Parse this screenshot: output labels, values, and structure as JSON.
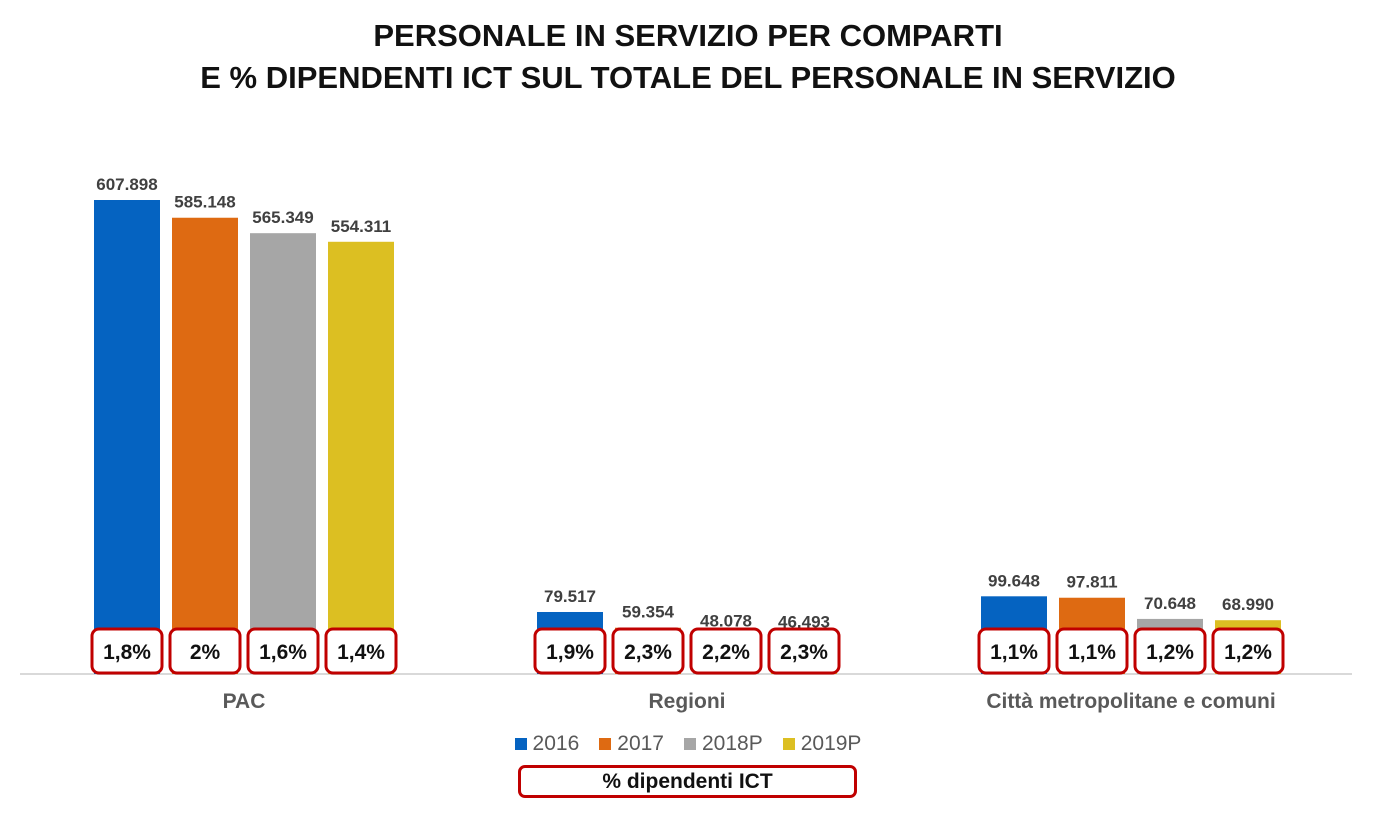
{
  "title_line1": "PERSONALE IN SERVIZIO PER COMPARTI",
  "title_line2": "E % DIPENDENTI ICT SUL TOTALE DEL PERSONALE IN SERVIZIO",
  "ict_legend_label": "% dipendenti ICT",
  "colors": {
    "2016": "#0563c1",
    "2017": "#de6a12",
    "2018P": "#a6a6a6",
    "2019P": "#dcbf22",
    "ict_border": "#c00000"
  },
  "chart_data": {
    "type": "bar",
    "categories": [
      "PAC",
      "Regioni",
      "Città metropolitane e comuni"
    ],
    "series": [
      {
        "name": "2016",
        "values": [
          607898,
          79517,
          99648
        ],
        "labels": [
          "607.898",
          "79.517",
          "99.648"
        ],
        "ict_pct": [
          "1,8%",
          "1,9%",
          "1,1%"
        ]
      },
      {
        "name": "2017",
        "values": [
          585148,
          59354,
          97811
        ],
        "labels": [
          "585.148",
          "59.354",
          "97.811"
        ],
        "ict_pct": [
          "2%",
          "2,3%",
          "1,1%"
        ]
      },
      {
        "name": "2018P",
        "values": [
          565349,
          48078,
          70648
        ],
        "labels": [
          "565.349",
          "48.078",
          "70.648"
        ],
        "ict_pct": [
          "1,6%",
          "2,2%",
          "1,2%"
        ]
      },
      {
        "name": "2019P",
        "values": [
          554311,
          46493,
          68990
        ],
        "labels": [
          "554.311",
          "46.493",
          "68.990"
        ],
        "ict_pct": [
          "1,4%",
          "2,3%",
          "1,2%"
        ]
      }
    ],
    "ylim": [
      0,
      700000
    ],
    "grid": false,
    "legend_position": "bottom-center"
  }
}
